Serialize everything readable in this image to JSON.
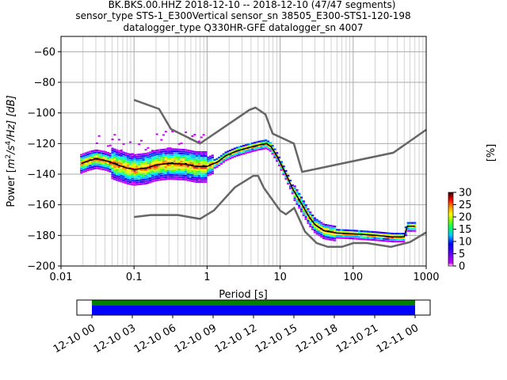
{
  "header": {
    "line1": "BK.BKS.00.HHZ   2018-12-10 -- 2018-12-10  (47/47 segments)",
    "line2": "sensor_type STS-1_E300Vertical sensor_sn 38505_E300-STS1-120-198",
    "line3": "datalogger_type Q330HR-GFE datalogger_sn 4007"
  },
  "colorbar": {
    "label": "[%]",
    "ticks": [
      "0",
      "5",
      "10",
      "15",
      "20",
      "25",
      "30"
    ],
    "range": [
      0,
      30
    ],
    "colors": [
      "#ffffff",
      "#aa00ff",
      "#0000ff",
      "#00ffff",
      "#00ff00",
      "#ffff00",
      "#ff0000",
      "#000000"
    ]
  },
  "chart_data": [
    {
      "type": "heatmap",
      "title": "",
      "xlabel": "Period [s]",
      "ylabel_prefix": "Power [",
      "ylabel_unit": "m",
      "ylabel_sup1": "2",
      "ylabel_mid": "/s",
      "ylabel_sup2": "4",
      "ylabel_suffix": "/Hz] [dB]",
      "x_scale": "log",
      "xlim": [
        0.01,
        1000
      ],
      "ylim": [
        -200,
        -50
      ],
      "x_tick_labels": [
        "0.01",
        "0.1",
        "1",
        "10",
        "100",
        "1000"
      ],
      "y_tick_labels": [
        "−60",
        "−80",
        "−100",
        "−120",
        "−140",
        "−160",
        "−180",
        "−200"
      ],
      "grid": true,
      "noise_models": {
        "high": [
          [
            0.1,
            -91.5
          ],
          [
            0.22,
            -97.4
          ],
          [
            0.32,
            -110.5
          ],
          [
            0.8,
            -120
          ],
          [
            3.8,
            -98
          ],
          [
            4.6,
            -96.5
          ],
          [
            6.3,
            -101
          ],
          [
            7.9,
            -113.5
          ],
          [
            15.4,
            -120
          ],
          [
            20,
            -138.5
          ],
          [
            354.8,
            -126
          ],
          [
            1000,
            -111
          ]
        ],
        "low": [
          [
            0.1,
            -168
          ],
          [
            0.17,
            -166.7
          ],
          [
            0.4,
            -166.7
          ],
          [
            0.8,
            -169.2
          ],
          [
            1.24,
            -163.7
          ],
          [
            2.4,
            -148.6
          ],
          [
            4.3,
            -141.1
          ],
          [
            5,
            -141.1
          ],
          [
            6,
            -149
          ],
          [
            10,
            -163.8
          ],
          [
            12,
            -166.2
          ],
          [
            15.6,
            -162.1
          ],
          [
            21.9,
            -177.5
          ],
          [
            31.6,
            -185
          ],
          [
            45,
            -187.5
          ],
          [
            70,
            -187.5
          ],
          [
            101,
            -185
          ],
          [
            154,
            -185
          ],
          [
            328,
            -187.5
          ],
          [
            600,
            -184.4
          ],
          [
            1000,
            -178
          ]
        ]
      },
      "mean_psd": [
        [
          0.019,
          -133
        ],
        [
          0.025,
          -131
        ],
        [
          0.03,
          -130
        ],
        [
          0.04,
          -131
        ],
        [
          0.06,
          -134
        ],
        [
          0.08,
          -136
        ],
        [
          0.1,
          -137
        ],
        [
          0.15,
          -136
        ],
        [
          0.2,
          -134
        ],
        [
          0.3,
          -133
        ],
        [
          0.5,
          -133.5
        ],
        [
          0.7,
          -135
        ],
        [
          1.0,
          -135
        ],
        [
          1.4,
          -132
        ],
        [
          1.8,
          -128
        ],
        [
          2.5,
          -125
        ],
        [
          3.5,
          -123
        ],
        [
          5,
          -121
        ],
        [
          6.5,
          -120
        ],
        [
          7.5,
          -122
        ],
        [
          9,
          -128
        ],
        [
          12,
          -140
        ],
        [
          15,
          -150
        ],
        [
          20,
          -160
        ],
        [
          25,
          -168
        ],
        [
          30,
          -173
        ],
        [
          40,
          -177
        ],
        [
          60,
          -178.5
        ],
        [
          100,
          -179
        ],
        [
          200,
          -180
        ],
        [
          350,
          -181
        ],
        [
          500,
          -181
        ],
        [
          550,
          -174
        ],
        [
          700,
          -174
        ]
      ]
    },
    {
      "type": "timeline",
      "x_tick_labels": [
        "12-10 00",
        "12-10 03",
        "12-10 06",
        "12-10 09",
        "12-10 12",
        "12-10 15",
        "12-10 18",
        "12-10 21",
        "12-11 00"
      ],
      "segments": 47,
      "colors": {
        "data": "#008000",
        "used": "#0000ff"
      }
    }
  ]
}
